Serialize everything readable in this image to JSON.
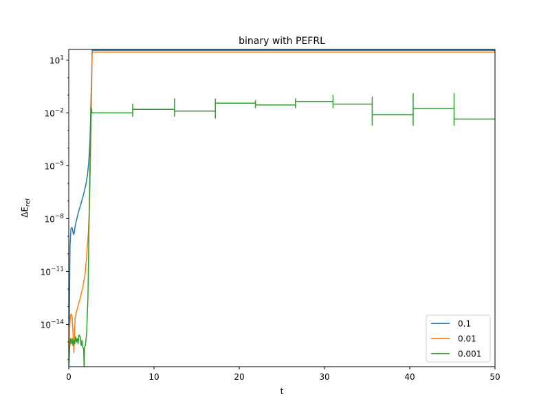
{
  "chart_data": {
    "type": "line",
    "title": "binary with PEFRL",
    "xlabel": "t",
    "ylabel_base": "ΔE",
    "ylabel_sub": "rel",
    "xlim": [
      0,
      50
    ],
    "ylim_log10": [
      -16.4,
      1.6
    ],
    "yscale": "log",
    "x_ticks": [
      0,
      10,
      20,
      30,
      40,
      50
    ],
    "y_ticks": [
      {
        "exp": 1,
        "base": "10",
        "sup": "1"
      },
      {
        "exp": -2,
        "base": "10",
        "sup": "−2"
      },
      {
        "exp": -5,
        "base": "10",
        "sup": "−5"
      },
      {
        "exp": -8,
        "base": "10",
        "sup": "−8"
      },
      {
        "exp": -11,
        "base": "10",
        "sup": "−11"
      },
      {
        "exp": -14,
        "base": "10",
        "sup": "−14"
      }
    ],
    "legend_position": "lower-right",
    "series": [
      {
        "name": "0.1",
        "color": "#1f77b4",
        "points": [
          [
            0.02,
            -16.4
          ],
          [
            0.1,
            -12
          ],
          [
            0.15,
            -9.5
          ],
          [
            0.25,
            -8.6
          ],
          [
            0.35,
            -8.5
          ],
          [
            0.45,
            -8.6
          ],
          [
            0.55,
            -8.9
          ],
          [
            0.65,
            -8.8
          ],
          [
            0.75,
            -8.4
          ],
          [
            0.9,
            -8.1
          ],
          [
            1.1,
            -7.7
          ],
          [
            1.4,
            -7.2
          ],
          [
            1.7,
            -6.7
          ],
          [
            2.0,
            -6.1
          ],
          [
            2.2,
            -5.5
          ],
          [
            2.35,
            -4.8
          ],
          [
            2.5,
            -3.5
          ],
          [
            2.6,
            -1.5
          ],
          [
            2.7,
            0.5
          ],
          [
            2.75,
            1.55
          ],
          [
            50,
            1.55
          ]
        ]
      },
      {
        "name": "0.01",
        "color": "#ff7f0e",
        "points": [
          [
            0.02,
            -16.4
          ],
          [
            0.1,
            -14.2
          ],
          [
            0.2,
            -13.5
          ],
          [
            0.3,
            -13.4
          ],
          [
            0.4,
            -13.6
          ],
          [
            0.5,
            -14.5
          ],
          [
            0.6,
            -15.6
          ],
          [
            0.65,
            -15
          ],
          [
            0.75,
            -13.6
          ],
          [
            1.0,
            -13.1
          ],
          [
            1.3,
            -12.6
          ],
          [
            1.6,
            -12
          ],
          [
            1.9,
            -11.2
          ],
          [
            2.1,
            -10.2
          ],
          [
            2.3,
            -8.8
          ],
          [
            2.45,
            -7
          ],
          [
            2.55,
            -4.5
          ],
          [
            2.65,
            -1.5
          ],
          [
            2.75,
            1.45
          ],
          [
            50,
            1.45
          ]
        ]
      },
      {
        "name": "0.001",
        "color": "#2ca02c",
        "points": [
          [
            0.02,
            -16.4
          ],
          [
            0.1,
            -15.4
          ],
          [
            0.2,
            -14.8
          ],
          [
            0.3,
            -15.1
          ],
          [
            0.4,
            -14.8
          ],
          [
            0.5,
            -15.2
          ],
          [
            0.6,
            -14.9
          ],
          [
            0.7,
            -15.1
          ],
          [
            0.8,
            -14.7
          ],
          [
            0.9,
            -15.0
          ],
          [
            1.0,
            -14.8
          ],
          [
            1.1,
            -15.1
          ],
          [
            1.2,
            -14.6
          ],
          [
            1.35,
            -14.7
          ],
          [
            1.45,
            -15.2
          ],
          [
            1.55,
            -14.9
          ],
          [
            1.65,
            -15.3
          ],
          [
            1.75,
            -15.4
          ],
          [
            1.8,
            -16.4
          ],
          [
            1.82,
            -16.4
          ],
          [
            1.85,
            -15.3
          ],
          [
            1.95,
            -15.2
          ],
          [
            2.1,
            -14.5
          ],
          [
            2.25,
            -12.5
          ],
          [
            2.35,
            -9.5
          ],
          [
            2.45,
            -6
          ],
          [
            2.55,
            -3.5
          ],
          [
            2.65,
            -1.7
          ],
          [
            2.72,
            -2
          ],
          [
            7.5,
            -2
          ],
          [
            7.5,
            -2.2
          ],
          [
            7.5,
            -1.5
          ],
          [
            7.5,
            -1.8
          ],
          [
            12.4,
            -1.8
          ],
          [
            12.4,
            -2.2
          ],
          [
            12.4,
            -1.2
          ],
          [
            12.4,
            -1.9
          ],
          [
            17.2,
            -1.9
          ],
          [
            17.2,
            -2.3
          ],
          [
            17.2,
            -1.2
          ],
          [
            17.2,
            -1.45
          ],
          [
            21.9,
            -1.45
          ],
          [
            21.9,
            -1.7
          ],
          [
            21.9,
            -1.3
          ],
          [
            21.9,
            -1.55
          ],
          [
            26.6,
            -1.55
          ],
          [
            26.6,
            -1.7
          ],
          [
            26.6,
            -1.2
          ],
          [
            26.6,
            -1.35
          ],
          [
            31.0,
            -1.35
          ],
          [
            31.0,
            -1.7
          ],
          [
            31.0,
            -1.0
          ],
          [
            31.0,
            -1.5
          ],
          [
            35.6,
            -1.5
          ],
          [
            35.6,
            -2.7
          ],
          [
            35.6,
            -1.1
          ],
          [
            35.6,
            -2.1
          ],
          [
            40.4,
            -2.1
          ],
          [
            40.4,
            -2.7
          ],
          [
            40.4,
            -0.9
          ],
          [
            40.4,
            -1.75
          ],
          [
            45.2,
            -1.75
          ],
          [
            45.2,
            -2.7
          ],
          [
            45.2,
            -0.9
          ],
          [
            45.2,
            -2.35
          ],
          [
            50,
            -2.35
          ]
        ]
      }
    ]
  }
}
